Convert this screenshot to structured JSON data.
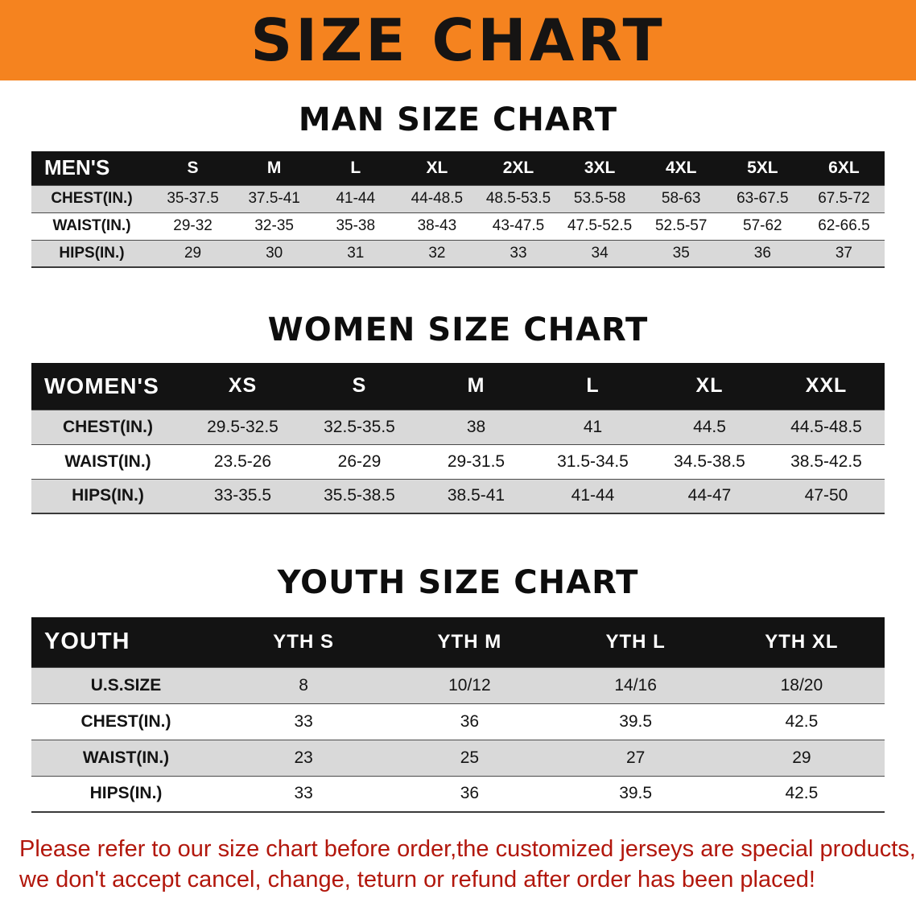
{
  "theme": {
    "accent_orange": "#F5831F",
    "header_black": "#131313",
    "stripe_gray": "#d9d9d9",
    "footer_red": "#B2170C"
  },
  "banner": {
    "title": "SIZE CHART"
  },
  "sections": {
    "men": {
      "heading": "MAN SIZE CHART",
      "table": {
        "corner": "MEN'S",
        "columns": [
          "S",
          "M",
          "L",
          "XL",
          "2XL",
          "3XL",
          "4XL",
          "5XL",
          "6XL"
        ],
        "rows": [
          {
            "label": "CHEST(IN.)",
            "values": [
              "35-37.5",
              "37.5-41",
              "41-44",
              "44-48.5",
              "48.5-53.5",
              "53.5-58",
              "58-63",
              "63-67.5",
              "67.5-72"
            ]
          },
          {
            "label": "WAIST(IN.)",
            "values": [
              "29-32",
              "32-35",
              "35-38",
              "38-43",
              "43-47.5",
              "47.5-52.5",
              "52.5-57",
              "57-62",
              "62-66.5"
            ]
          },
          {
            "label": "HIPS(IN.)",
            "values": [
              "29",
              "30",
              "31",
              "32",
              "33",
              "34",
              "35",
              "36",
              "37"
            ]
          }
        ]
      }
    },
    "women": {
      "heading": "WOMEN SIZE CHART",
      "table": {
        "corner": "WOMEN'S",
        "columns": [
          "XS",
          "S",
          "M",
          "L",
          "XL",
          "XXL"
        ],
        "rows": [
          {
            "label": "CHEST(IN.)",
            "values": [
              "29.5-32.5",
              "32.5-35.5",
              "38",
              "41",
              "44.5",
              "44.5-48.5"
            ]
          },
          {
            "label": "WAIST(IN.)",
            "values": [
              "23.5-26",
              "26-29",
              "29-31.5",
              "31.5-34.5",
              "34.5-38.5",
              "38.5-42.5"
            ]
          },
          {
            "label": "HIPS(IN.)",
            "values": [
              "33-35.5",
              "35.5-38.5",
              "38.5-41",
              "41-44",
              "44-47",
              "47-50"
            ]
          }
        ]
      }
    },
    "youth": {
      "heading": "YOUTH SIZE CHART",
      "table": {
        "corner": "YOUTH",
        "columns": [
          "YTH S",
          "YTH M",
          "YTH L",
          "YTH XL"
        ],
        "rows": [
          {
            "label": "U.S.SIZE",
            "values": [
              "8",
              "10/12",
              "14/16",
              "18/20"
            ]
          },
          {
            "label": "CHEST(IN.)",
            "values": [
              "33",
              "36",
              "39.5",
              "42.5"
            ]
          },
          {
            "label": "WAIST(IN.)",
            "values": [
              "23",
              "25",
              "27",
              "29"
            ]
          },
          {
            "label": "HIPS(IN.)",
            "values": [
              "33",
              "36",
              "39.5",
              "42.5"
            ]
          }
        ]
      }
    }
  },
  "footer": {
    "line1": "Please refer to our size chart before order,the customized jerseys are special products,",
    "line2": "we don't accept cancel, change, teturn or refund after order has been placed!"
  }
}
